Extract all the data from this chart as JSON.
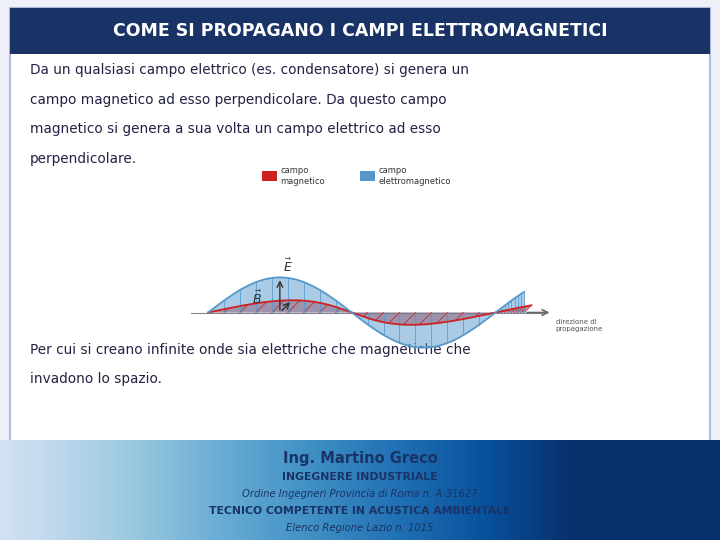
{
  "bg_color": "#f0f0f8",
  "slide_bg": "#ffffff",
  "title": "COME SI PROPAGANO I CAMPI ELETTROMAGNETICI",
  "title_bg": "#1a3366",
  "title_color": "#ffffff",
  "body1_lines": [
    "Da un qualsiasi campo elettrico (es. condensatore) si genera un",
    "campo magnetico ad esso perpendicolare. Da questo campo",
    "magnetico si genera a sua volta un campo elettrico ad esso",
    "perpendicolare."
  ],
  "body2_lines": [
    "Per cui si creano infinite onde sia elettriche che magnetiche che",
    "invadono lo spazio."
  ],
  "legend_color_1": "#cc2222",
  "legend_color_2": "#5599cc",
  "legend_label_1": "campo\nmagnetico",
  "legend_label_2": "campo\nelettromagnetico",
  "wave_blue": "#5599cc",
  "wave_red": "#cc2222",
  "footer_name": "Ing. Martino Greco",
  "footer_title": "INGEGNERE INDUSTRIALE",
  "footer_line3": "Ordine Ingegneri Provincia di Roma n. A-31627",
  "footer_line4": "TECNICO COMPETENTE IN ACUSTICA AMBIENTALE",
  "footer_line5": "Elenco Regione Lazio n. 1015",
  "footer_color": "#1a3366",
  "border_color": "#aabbdd",
  "text_color": "#222244"
}
